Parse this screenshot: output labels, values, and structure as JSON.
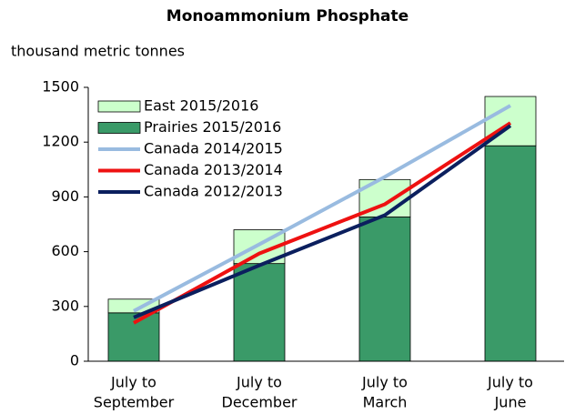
{
  "chart_data": {
    "type": "stacked-bar-line",
    "title": "Monoammonium Phosphate",
    "subtitle": "thousand metric tonnes",
    "categories": [
      [
        "July to",
        "September"
      ],
      [
        "July to",
        "December"
      ],
      [
        "July to",
        "March"
      ],
      [
        "July to",
        "June"
      ]
    ],
    "series": [
      {
        "name": "East 2015/2016",
        "kind": "bar",
        "color": "#ccffcc",
        "values": [
          75,
          185,
          205,
          270
        ]
      },
      {
        "name": "Prairies 2015/2016",
        "kind": "bar",
        "color": "#3a9a68",
        "values": [
          265,
          535,
          790,
          1180
        ]
      },
      {
        "name": "Canada 2014/2015",
        "kind": "line",
        "color": "#99bbe0",
        "values": [
          275,
          640,
          1010,
          1400
        ]
      },
      {
        "name": "Canada 2013/2014",
        "kind": "line",
        "color": "#ee1111",
        "values": [
          210,
          590,
          860,
          1305
        ]
      },
      {
        "name": "Canada 2012/2013",
        "kind": "line",
        "color": "#0b1f5e",
        "values": [
          240,
          525,
          800,
          1290
        ]
      }
    ],
    "ylim": [
      0,
      1500
    ],
    "yticks": [
      0,
      300,
      600,
      900,
      1200,
      1500
    ]
  }
}
